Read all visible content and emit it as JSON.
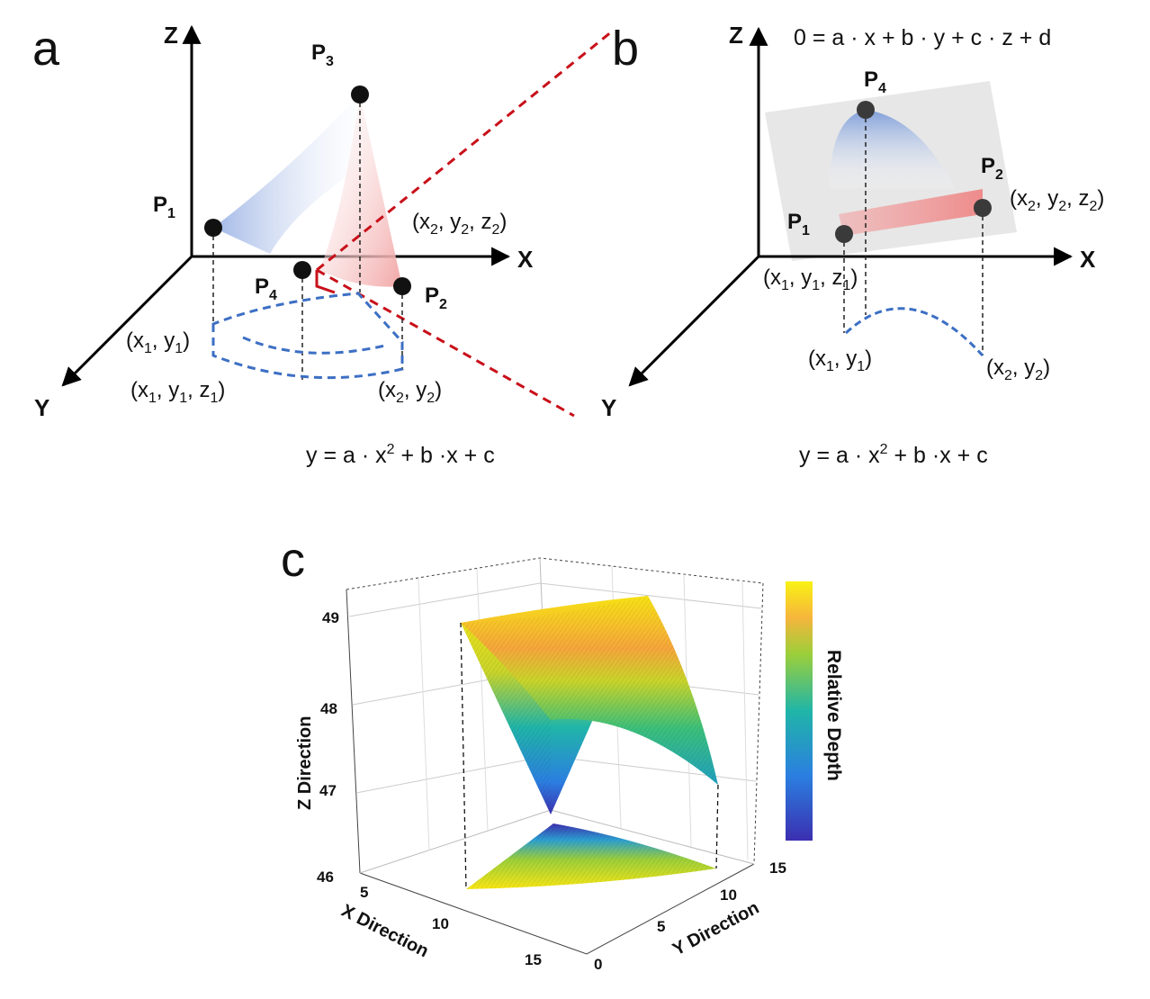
{
  "panel_a": {
    "letter": "a",
    "axes": {
      "z": "Z",
      "x": "X",
      "y": "Y"
    },
    "points": [
      {
        "base": "P",
        "sub": "1"
      },
      {
        "base": "P",
        "sub": "2"
      },
      {
        "base": "P",
        "sub": "3"
      },
      {
        "base": "P",
        "sub": "4"
      }
    ],
    "coord_x2y2z2": {
      "p1": "(x",
      "s1": "2",
      "p2": ", y",
      "s2": "2",
      "p3": ", z",
      "s3": "2",
      "p4": ")"
    },
    "coord_x1y1": {
      "p1": "(x",
      "s1": "1",
      "p2": ", y",
      "s2": "1",
      "p3": ")"
    },
    "coord_x1y1z1": {
      "p1": "(x",
      "s1": "1",
      "p2": ", y",
      "s2": "1",
      "p3": ", z",
      "s3": "1",
      "p4": ")"
    },
    "coord_x2y2": {
      "p1": "(x",
      "s1": "2",
      "p2": ", y",
      "s2": "2",
      "p3": ")"
    },
    "equation": {
      "pre": "y = a · x",
      "sup": "2",
      "post": " + b ·x + c"
    }
  },
  "panel_b": {
    "letter": "b",
    "axes": {
      "z": "Z",
      "x": "X",
      "y": "Y"
    },
    "plane_equation": "0 = a · x + b · y + c · z + d",
    "points": [
      {
        "base": "P",
        "sub": "1"
      },
      {
        "base": "P",
        "sub": "2"
      },
      {
        "base": "P",
        "sub": "4"
      }
    ],
    "coord_x2y2z2": {
      "p1": "(x",
      "s1": "2",
      "p2": ", y",
      "s2": "2",
      "p3": ", z",
      "s3": "2",
      "p4": ")"
    },
    "coord_x1y1z1": {
      "p1": "(x",
      "s1": "1",
      "p2": ", y",
      "s2": "1",
      "p3": ", z",
      "s3": "1",
      "p4": ")"
    },
    "coord_x1y1": {
      "p1": "(x",
      "s1": "1",
      "p2": ", y",
      "s2": "1",
      "p3": ")"
    },
    "coord_x2y2": {
      "p1": "(x",
      "s1": "2",
      "p2": ", y",
      "s2": "2",
      "p3": ")"
    },
    "equation": {
      "pre": "y = a · x",
      "sup": "2",
      "post": " + b ·x + c"
    }
  },
  "panel_c": {
    "letter": "c",
    "z_label": "Z Direction",
    "x_label": "X Direction",
    "y_label": "Y Direction",
    "colorbar_label": "Relative Depth",
    "z_ticks": [
      "46",
      "47",
      "48",
      "49"
    ],
    "x_ticks": [
      "5",
      "10",
      "15"
    ],
    "y_ticks": [
      "0",
      "5",
      "10",
      "15"
    ],
    "colors": {
      "low": "#3b2fb0",
      "mid": "#20b5a8",
      "high": "#f9e614",
      "peak": "#f6a63c"
    }
  },
  "colors": {
    "red_dash": "#c8101a",
    "blue_dash": "#3d6fc4",
    "point": "#111111",
    "plane": "#e3e3e3"
  }
}
